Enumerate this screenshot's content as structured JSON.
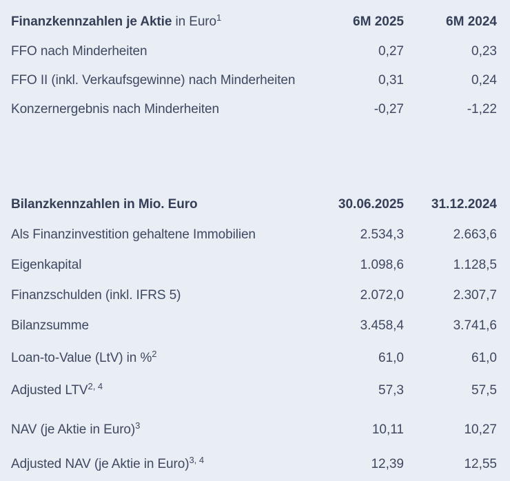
{
  "page": {
    "background_color": "#e9edf4",
    "text_color": "#3e4861"
  },
  "per_share_table": {
    "title_bold": "Finanzkennzahlen je Aktie",
    "title_regular": "in Euro",
    "title_footnote": "1",
    "columns": [
      "6M 2025",
      "6M 2024"
    ],
    "rows": [
      {
        "label": "FFO nach Minderheiten",
        "footnote": "",
        "current": "0,27",
        "previous": "0,23"
      },
      {
        "label": "FFO II (inkl. Verkaufsgewinne) nach Minderheiten",
        "footnote": "",
        "current": "0,31",
        "previous": "0,24"
      },
      {
        "label": "Konzernergebnis nach Minderheiten",
        "footnote": "",
        "current": "-0,27",
        "previous": "-1,22"
      }
    ]
  },
  "balance_sheet_table": {
    "title": "Bilanzkennzahlen in Mio. Euro",
    "columns": [
      "30.06.2025",
      "31.12.2024"
    ],
    "rows": [
      {
        "label": "Als Finanzinvestition gehaltene Immobilien",
        "footnote": "",
        "current": "2.534,3",
        "previous": "2.663,6"
      },
      {
        "label": "Eigenkapital",
        "footnote": "",
        "current": "1.098,6",
        "previous": "1.128,5"
      },
      {
        "label": "Finanzschulden (inkl. IFRS 5)",
        "footnote": "",
        "current": "2.072,0",
        "previous": "2.307,7"
      },
      {
        "label": "Bilanzsumme",
        "footnote": "",
        "current": "3.458,4",
        "previous": "3.741,6"
      },
      {
        "label": "Loan-to-Value (LtV) in %",
        "footnote": "2",
        "current": "61,0",
        "previous": "61,0"
      },
      {
        "label": "Adjusted LTV",
        "footnote": "2, 4",
        "current": "57,3",
        "previous": "57,5"
      },
      {
        "label": "NAV (je Aktie in Euro)",
        "footnote": "3",
        "current": "10,11",
        "previous": "10,27"
      },
      {
        "label": "Adjusted NAV (je Aktie in Euro)",
        "footnote": "3, 4",
        "current": "12,39",
        "previous": "12,55"
      }
    ]
  }
}
